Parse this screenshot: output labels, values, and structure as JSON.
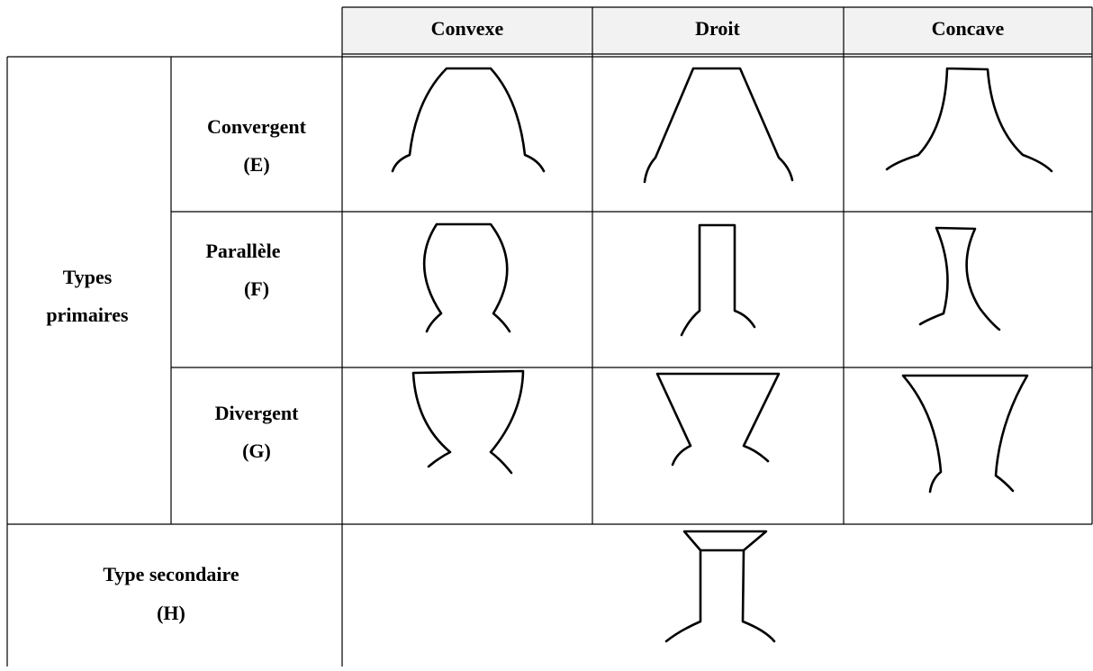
{
  "table": {
    "columns": [
      "Convexe",
      "Droit",
      "Concave"
    ],
    "primary": {
      "label": [
        "Types",
        "primaires"
      ],
      "rows": [
        {
          "name": "Convergent",
          "code": "(E)"
        },
        {
          "name": "Parallèle",
          "code": "(F)"
        },
        {
          "name": "Divergent",
          "code": "(G)"
        }
      ]
    },
    "secondary": {
      "name": "Type secondaire",
      "code": "(H)"
    }
  }
}
